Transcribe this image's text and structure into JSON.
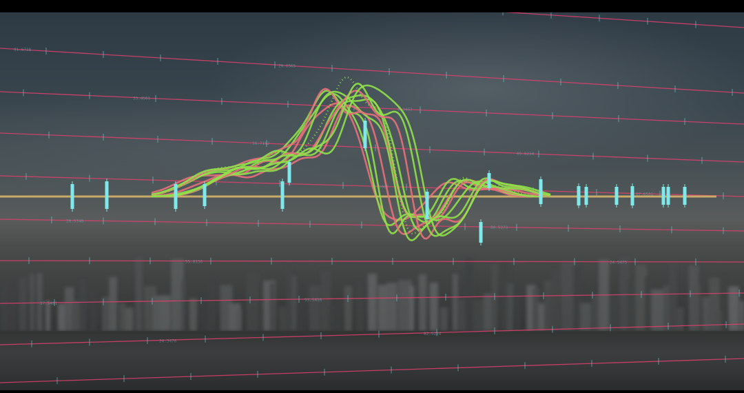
{
  "scene": {
    "description_type": "financial chart overlay on blurred cityscape",
    "colors": {
      "grid_line": "#e0406e",
      "tick": "#6fd6d6",
      "candle": "#7fe8ea",
      "wave_green": "#8fe04a",
      "wave_pink": "#e8707a",
      "baseline": "#d8b46a"
    },
    "labels": [
      "91.6728",
      "33.4561",
      "16.7152",
      "35.1067",
      "80.5273",
      "24.5475",
      "37.5481",
      "24.3476",
      "28.6565",
      "6.2457",
      "65.9234",
      "87.6531",
      "20.5748",
      "55.8136",
      "53.5416",
      "82.5254"
    ]
  }
}
